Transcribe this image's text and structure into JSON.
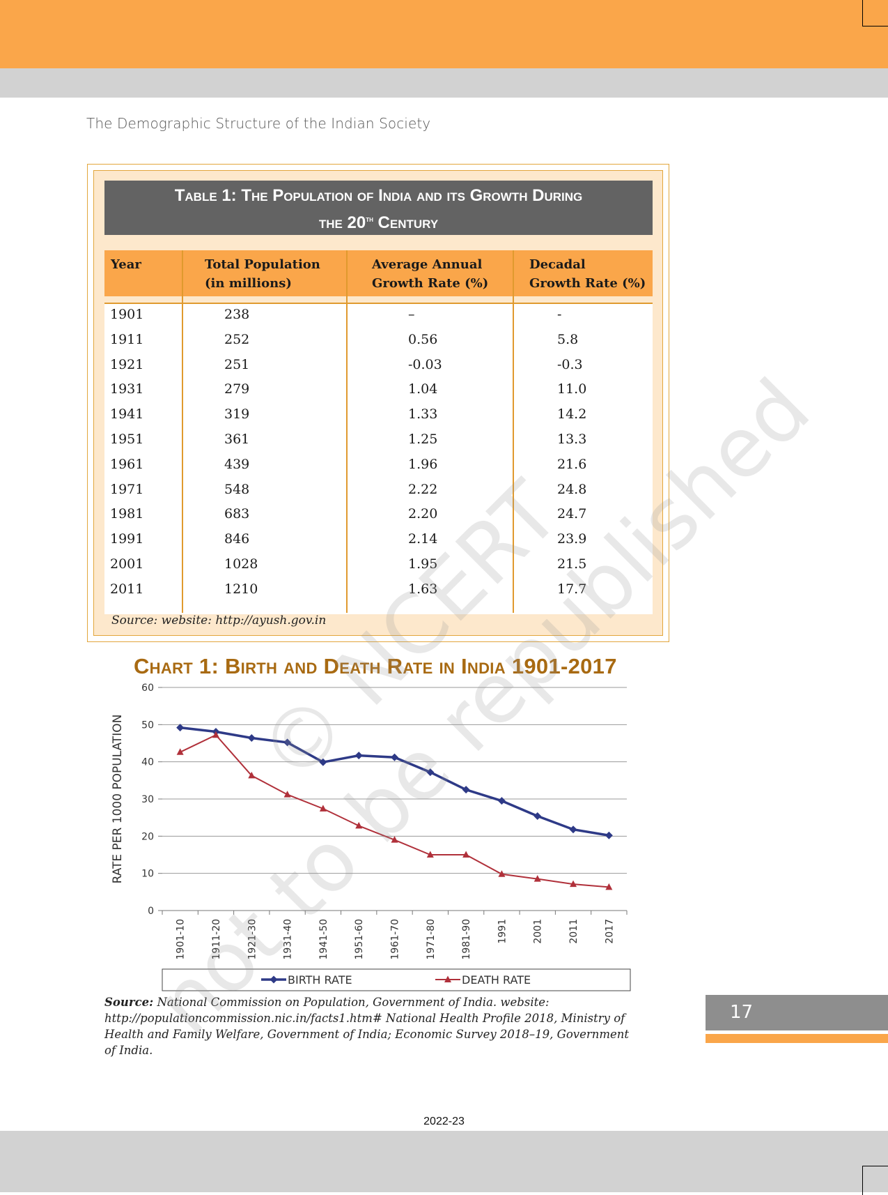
{
  "header": {
    "running_title": "The Demographic Structure of the Indian Society"
  },
  "table": {
    "title_line1": "Table 1: The Population of India and its Growth During",
    "title_line2_pre": "the 20",
    "title_line2_sup": "th",
    "title_line2_post": " Century",
    "columns": [
      {
        "line1": "Year",
        "line2": ""
      },
      {
        "line1": "Total Population",
        "line2": "(in millions)"
      },
      {
        "line1": "Average Annual",
        "line2": "Growth Rate (%)"
      },
      {
        "line1": "Decadal",
        "line2": "Growth Rate (%)"
      }
    ],
    "rows": [
      [
        "1901",
        "238",
        "–",
        "-"
      ],
      [
        "1911",
        "252",
        "0.56",
        "5.8"
      ],
      [
        "1921",
        "251",
        "-0.03",
        "-0.3"
      ],
      [
        "1931",
        "279",
        "1.04",
        "11.0"
      ],
      [
        "1941",
        "319",
        "1.33",
        "14.2"
      ],
      [
        "1951",
        "361",
        "1.25",
        "13.3"
      ],
      [
        "1961",
        "439",
        "1.96",
        "21.6"
      ],
      [
        "1971",
        "548",
        "2.22",
        "24.8"
      ],
      [
        "1981",
        "683",
        "2.20",
        "24.7"
      ],
      [
        "1991",
        "846",
        "2.14",
        "23.9"
      ],
      [
        "2001",
        "1028",
        "1.95",
        "21.5"
      ],
      [
        "2011",
        "1210",
        "1.63",
        "17.7"
      ]
    ],
    "source": "Source: website: http://ayush.gov.in"
  },
  "chart_data": {
    "type": "line",
    "title": "Chart 1: Birth and Death Rate in India 1901-2017",
    "ylabel": "RATE PER 1000 POPULATION",
    "xlabel": "",
    "ylim": [
      0,
      60
    ],
    "yticks": [
      "0",
      "10",
      "20",
      "30",
      "40",
      "50",
      "60"
    ],
    "categories": [
      "1901-10",
      "1911-20",
      "1921-30",
      "1931-40",
      "1941-50",
      "1951-60",
      "1961-70",
      "1971-80",
      "1981-90",
      "1991",
      "2001",
      "2011",
      "2017"
    ],
    "series": [
      {
        "name": "BIRTH RATE",
        "color": "#2e3a87",
        "marker": "diamond",
        "values": [
          49.2,
          48.1,
          46.4,
          45.2,
          39.9,
          41.7,
          41.2,
          37.2,
          32.5,
          29.5,
          25.4,
          21.8,
          20.2
        ]
      },
      {
        "name": "DEATH RATE",
        "color": "#b0303a",
        "marker": "triangle",
        "values": [
          42.6,
          47.2,
          36.3,
          31.2,
          27.4,
          22.8,
          19.0,
          15.0,
          15.0,
          9.8,
          8.5,
          7.1,
          6.3
        ]
      }
    ],
    "grid": true,
    "legend_position": "bottom"
  },
  "chart_source": {
    "label": "Source:",
    "text": " National Commission on Population, Government of India. website: http://populationcommission.nic.in/facts1.htm# National Health Profile 2018, Ministry of Health and Family Welfare, Government of India; Economic Survey 2018–19, Government of India."
  },
  "footer": {
    "page_number": "17",
    "year": "2022-23"
  },
  "watermark": {
    "line1": "© NCERT",
    "line2": "not to be republished"
  }
}
